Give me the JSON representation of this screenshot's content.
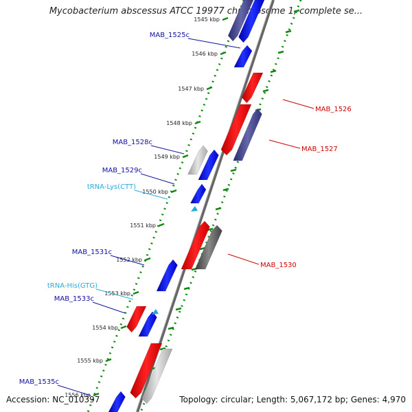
{
  "title": "Mycobacterium abscessus ATCC 19977 chromosome 1, complete se...",
  "footer": {
    "accession": "Accession: NC_010397",
    "summary": "Topology: circular; Length: 5,067,172 bp; Genes: 4,970"
  },
  "colors": {
    "forward_gene": "#0000ee",
    "reverse_gene": "#ee0000",
    "rna": "#22aadd",
    "label_blue": "#1010a0",
    "label_red": "#cc0000",
    "label_cyan": "#2aaad8",
    "tick_green": "#118811",
    "backbone": "#777777"
  },
  "ticks": [
    {
      "label": "1545 kbp"
    },
    {
      "label": "1546 kbp"
    },
    {
      "label": "1547 kbp"
    },
    {
      "label": "1548 kbp"
    },
    {
      "label": "1549 kbp"
    },
    {
      "label": "1550 kbp"
    },
    {
      "label": "1551 kbp"
    },
    {
      "label": "1552 kbp"
    },
    {
      "label": "1553 kbp"
    },
    {
      "label": "1554 kbp"
    },
    {
      "label": "1555 kbp"
    },
    {
      "label": "1556 kbp"
    }
  ],
  "labels": {
    "left": [
      "MAB_1525c",
      "MAB_1528c",
      "MAB_1529c",
      "tRNA-Lys(CTT)",
      "MAB_1531c",
      "tRNA-His(GTG)",
      "MAB_1533c",
      "MAB_1535c"
    ],
    "right": [
      "MAB_1526",
      "MAB_1527",
      "MAB_1530"
    ]
  }
}
